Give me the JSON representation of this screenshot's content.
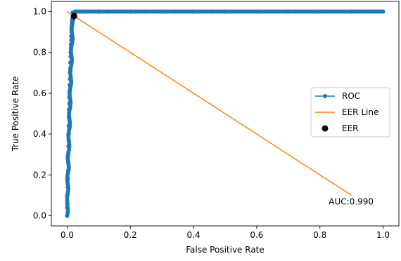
{
  "chart_data": {
    "type": "line",
    "title": "",
    "xlabel": "False Positive Rate",
    "ylabel": "True Positive Rate",
    "xlim": [
      -0.05,
      1.05
    ],
    "ylim": [
      -0.05,
      1.05
    ],
    "x_ticks": [
      0.0,
      0.2,
      0.4,
      0.6,
      0.8,
      1.0
    ],
    "y_ticks": [
      0.0,
      0.2,
      0.4,
      0.6,
      0.8,
      1.0
    ],
    "x_tick_labels": [
      "0.0",
      "0.2",
      "0.4",
      "0.6",
      "0.8",
      "1.0"
    ],
    "y_tick_labels": [
      "0.0",
      "0.2",
      "0.4",
      "0.6",
      "0.8",
      "1.0"
    ],
    "grid": false,
    "legend_position": "center-right",
    "series": [
      {
        "name": "ROC",
        "style": "line-with-markers",
        "color": "#1f77b4",
        "x": [
          0.0,
          0.0,
          0.001,
          0.001,
          0.002,
          0.002,
          0.003,
          0.003,
          0.004,
          0.004,
          0.005,
          0.005,
          0.005,
          0.006,
          0.006,
          0.007,
          0.007,
          0.008,
          0.008,
          0.009,
          0.009,
          0.01,
          0.01,
          0.011,
          0.011,
          0.012,
          0.012,
          0.013,
          0.013,
          0.014,
          0.014,
          0.015,
          0.015,
          0.016,
          0.016,
          0.017,
          0.018,
          0.019,
          0.02,
          0.022,
          0.025,
          0.03,
          0.05,
          0.1,
          0.2,
          0.3,
          0.4,
          0.5,
          0.6,
          0.7,
          0.8,
          0.9,
          1.0
        ],
        "y": [
          0.0,
          0.04,
          0.06,
          0.1,
          0.14,
          0.18,
          0.22,
          0.26,
          0.3,
          0.34,
          0.37,
          0.4,
          0.44,
          0.48,
          0.52,
          0.55,
          0.58,
          0.61,
          0.64,
          0.67,
          0.7,
          0.72,
          0.75,
          0.78,
          0.8,
          0.82,
          0.84,
          0.86,
          0.88,
          0.9,
          0.92,
          0.93,
          0.94,
          0.95,
          0.96,
          0.97,
          0.98,
          0.985,
          0.99,
          0.995,
          1.0,
          1.0,
          1.0,
          1.0,
          1.0,
          1.0,
          1.0,
          1.0,
          1.0,
          1.0,
          1.0,
          1.0,
          1.0
        ]
      },
      {
        "name": "EER Line",
        "style": "line",
        "color": "#ff7f0e",
        "x": [
          0.0,
          0.9
        ],
        "y": [
          1.0,
          0.1
        ]
      },
      {
        "name": "EER",
        "style": "marker",
        "color": "#000000",
        "x": [
          0.022
        ],
        "y": [
          0.978
        ]
      }
    ],
    "annotations": [
      {
        "text": "AUC:0.990",
        "x": 0.97,
        "y": 0.055
      }
    ]
  }
}
